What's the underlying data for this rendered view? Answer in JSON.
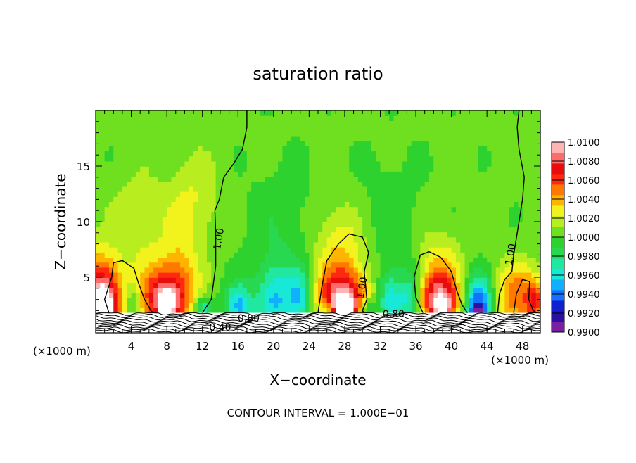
{
  "chart_data": {
    "type": "heatmap",
    "title": "saturation ratio",
    "xlabel": "X−coordinate",
    "ylabel": "Z−coordinate",
    "x_unit_label": "(×1000 m)",
    "x_unit_label_left": "(×1000 m)",
    "xlim": [
      0,
      50
    ],
    "ylim": [
      0,
      20
    ],
    "x_ticks": [
      4,
      8,
      12,
      16,
      20,
      24,
      28,
      32,
      36,
      40,
      44,
      48
    ],
    "y_ticks": [
      5,
      10,
      15
    ],
    "footer": "CONTOUR INTERVAL = 1.000E−01",
    "colorbar": {
      "labels": [
        "1.0100",
        "1.0080",
        "1.0060",
        "1.0040",
        "1.0020",
        "1.0000",
        "0.9980",
        "0.9960",
        "0.9940",
        "0.9920",
        "0.9900"
      ],
      "min": 0.99,
      "max": 1.01,
      "colors": [
        "#7a1fa2",
        "#2a0fa0",
        "#1020d0",
        "#1470ff",
        "#10b0ff",
        "#18e8d8",
        "#20e8a0",
        "#28d850",
        "#2ed22e",
        "#6ee020",
        "#b8ee20",
        "#f2f21c",
        "#ffb400",
        "#ff7800",
        "#ff2810",
        "#e80c0c",
        "#ff6a6a",
        "#ffb4b4"
      ]
    },
    "contour_labels": [
      {
        "text": "1.00",
        "x": 14.2,
        "y": 8.4
      },
      {
        "text": "1.00",
        "x": 30.3,
        "y": 4.0
      },
      {
        "text": "1.00",
        "x": 47.0,
        "y": 7.0
      },
      {
        "text": "0.80",
        "x": 17.2,
        "y": 1.0
      },
      {
        "text": "0.80",
        "x": 33.5,
        "y": 1.4
      },
      {
        "text": "0.40",
        "x": 14.0,
        "y": 0.2
      }
    ],
    "field_blobs": [
      {
        "x": 0.5,
        "z": 2.6,
        "rx": 2.4,
        "rz": 4.0,
        "amp": 0.011
      },
      {
        "x": 0.8,
        "z": 2.2,
        "rx": 0.8,
        "rz": 1.4,
        "amp": 0.01
      },
      {
        "x": 7.5,
        "z": 3.0,
        "rx": 2.8,
        "rz": 3.0,
        "amp": 0.0075
      },
      {
        "x": 8.0,
        "z": 2.6,
        "rx": 0.9,
        "rz": 1.2,
        "amp": 0.006
      },
      {
        "x": 9.5,
        "z": 5.0,
        "rx": 2.2,
        "rz": 4.0,
        "amp": 0.003
      },
      {
        "x": 5.0,
        "z": 10.0,
        "rx": 3.0,
        "rz": 4.0,
        "amp": 0.002
      },
      {
        "x": 11.0,
        "z": 12.0,
        "rx": 3.0,
        "rz": 4.0,
        "amp": 0.002
      },
      {
        "x": 27.8,
        "z": 3.0,
        "rx": 3.0,
        "rz": 2.6,
        "amp": 0.0085
      },
      {
        "x": 28.0,
        "z": 2.4,
        "rx": 1.2,
        "rz": 0.8,
        "amp": 0.006
      },
      {
        "x": 27.5,
        "z": 7.5,
        "rx": 3.0,
        "rz": 4.0,
        "amp": 0.003
      },
      {
        "x": 38.5,
        "z": 3.0,
        "rx": 2.6,
        "rz": 2.2,
        "amp": 0.008
      },
      {
        "x": 39.0,
        "z": 2.3,
        "rx": 1.0,
        "rz": 0.8,
        "amp": 0.005
      },
      {
        "x": 38.5,
        "z": 6.0,
        "rx": 2.5,
        "rz": 3.0,
        "amp": 0.003
      },
      {
        "x": 47.5,
        "z": 3.2,
        "rx": 2.5,
        "rz": 3.0,
        "amp": 0.005
      },
      {
        "x": 49.5,
        "z": 2.8,
        "rx": 1.0,
        "rz": 2.0,
        "amp": 0.004
      },
      {
        "x": 21.0,
        "z": 9.0,
        "rx": 4.0,
        "rz": 6.0,
        "amp": -0.0012
      },
      {
        "x": 33.0,
        "z": 10.0,
        "rx": 4.0,
        "rz": 6.0,
        "amp": -0.001
      },
      {
        "x": 16.0,
        "z": 2.4,
        "rx": 1.5,
        "rz": 2.0,
        "amp": -0.005
      },
      {
        "x": 20.0,
        "z": 3.0,
        "rx": 2.0,
        "rz": 3.2,
        "amp": -0.0045
      },
      {
        "x": 23.0,
        "z": 3.0,
        "rx": 1.5,
        "rz": 2.6,
        "amp": -0.0045
      },
      {
        "x": 33.0,
        "z": 3.0,
        "rx": 1.4,
        "rz": 2.5,
        "amp": -0.0045
      },
      {
        "x": 35.5,
        "z": 3.0,
        "rx": 1.4,
        "rz": 2.6,
        "amp": -0.005
      },
      {
        "x": 43.0,
        "z": 2.8,
        "rx": 1.6,
        "rz": 2.4,
        "amp": -0.007
      },
      {
        "x": 43.0,
        "z": 2.0,
        "rx": 1.0,
        "rz": 0.7,
        "amp": -0.004
      },
      {
        "x": 12.0,
        "z": 2.2,
        "rx": 1.0,
        "rz": 1.0,
        "amp": -0.004
      },
      {
        "x": 4.2,
        "z": 2.5,
        "rx": 1.0,
        "rz": 1.8,
        "amp": -0.003
      },
      {
        "x": 30.5,
        "z": 2.2,
        "rx": 1.0,
        "rz": 1.0,
        "amp": -0.004
      },
      {
        "x": 26.0,
        "z": 2.0,
        "rx": 0.8,
        "rz": 1.0,
        "amp": -0.003
      }
    ],
    "contour_1_00": [
      [
        [
          1.5,
          1.8
        ],
        [
          1.0,
          3.0
        ],
        [
          1.8,
          5.0
        ],
        [
          2.0,
          6.3
        ],
        [
          3.0,
          6.5
        ],
        [
          4.3,
          5.8
        ],
        [
          4.8,
          4.5
        ],
        [
          5.5,
          3.0
        ],
        [
          6.2,
          2.0
        ],
        [
          6.5,
          1.8
        ]
      ],
      [
        [
          12.0,
          1.8
        ],
        [
          13.0,
          3.0
        ],
        [
          13.5,
          6.0
        ],
        [
          13.5,
          9.0
        ],
        [
          13.4,
          11.0
        ],
        [
          13.9,
          12.0
        ],
        [
          14.4,
          14.0
        ],
        [
          15.5,
          15.2
        ],
        [
          16.5,
          16.5
        ],
        [
          17.0,
          18.5
        ],
        [
          17.0,
          20.0
        ]
      ],
      [
        [
          25.0,
          1.8
        ],
        [
          25.4,
          4.0
        ],
        [
          26.0,
          6.5
        ],
        [
          27.3,
          8.0
        ],
        [
          28.5,
          8.9
        ],
        [
          30.0,
          8.6
        ],
        [
          30.7,
          7.2
        ],
        [
          30.2,
          5.5
        ],
        [
          30.5,
          3.0
        ],
        [
          30.0,
          2.0
        ],
        [
          30.2,
          1.8
        ]
      ],
      [
        [
          36.8,
          1.8
        ],
        [
          36.0,
          3.2
        ],
        [
          35.8,
          5.0
        ],
        [
          36.5,
          7.0
        ],
        [
          37.5,
          7.3
        ],
        [
          38.8,
          6.8
        ],
        [
          40.0,
          5.5
        ],
        [
          40.6,
          3.8
        ],
        [
          41.2,
          2.5
        ],
        [
          41.8,
          1.8
        ]
      ],
      [
        [
          45.2,
          1.8
        ],
        [
          45.4,
          3.5
        ],
        [
          46.0,
          4.8
        ],
        [
          46.8,
          5.5
        ],
        [
          47.0,
          7.0
        ],
        [
          47.6,
          10.0
        ],
        [
          48.0,
          12.0
        ],
        [
          48.2,
          14.0
        ],
        [
          47.6,
          16.5
        ],
        [
          47.4,
          18.5
        ],
        [
          47.6,
          20.0
        ]
      ],
      [
        [
          47.0,
          1.8
        ],
        [
          47.3,
          3.5
        ],
        [
          48.0,
          4.8
        ],
        [
          48.8,
          4.6
        ],
        [
          48.7,
          3.0
        ],
        [
          49.2,
          2.0
        ],
        [
          49.6,
          1.8
        ]
      ]
    ]
  }
}
